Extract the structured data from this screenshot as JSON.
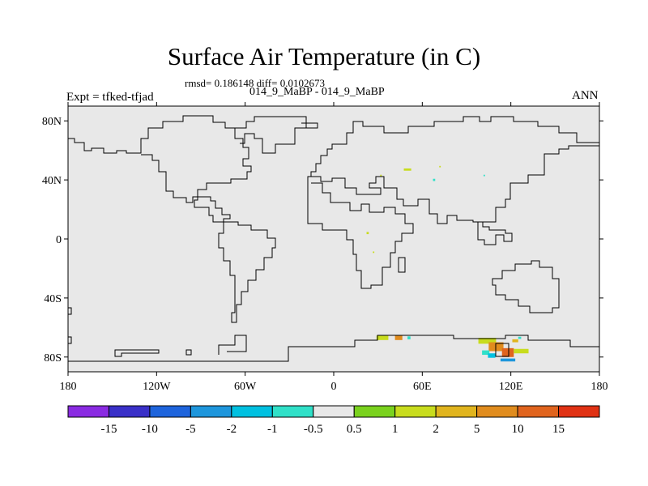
{
  "header": {
    "title": "Surface Air Temperature (in C)",
    "stats": "rmsd= 0.186148 diff= 0.0102673",
    "runs": "014_9_MaBP - 014_9_MaBP",
    "expt": "Expt = tfked-tfjad",
    "season": "ANN"
  },
  "map": {
    "projection": "cylindrical-equidistant",
    "lon_range": [
      -180,
      180
    ],
    "lat_range": [
      -90,
      90
    ],
    "background_color": "#e8e8e8",
    "x_ticks": [
      {
        "lon": -180,
        "label": "180"
      },
      {
        "lon": -120,
        "label": "120W"
      },
      {
        "lon": -60,
        "label": "60W"
      },
      {
        "lon": 0,
        "label": "0"
      },
      {
        "lon": 60,
        "label": "60E"
      },
      {
        "lon": 120,
        "label": "120E"
      },
      {
        "lon": 180,
        "label": "180"
      }
    ],
    "y_ticks": [
      {
        "lat": 80,
        "label": "80N"
      },
      {
        "lat": 40,
        "label": "40N"
      },
      {
        "lat": 0,
        "label": "0"
      },
      {
        "lat": -40,
        "label": "40S"
      },
      {
        "lat": -80,
        "label": "80S"
      }
    ],
    "anomaly_patches": [
      {
        "lon": 50,
        "lat": 47,
        "value": 1,
        "size": [
          5,
          1.5
        ]
      },
      {
        "lon": 72,
        "lat": 49,
        "value": 1,
        "size": [
          1,
          1
        ]
      },
      {
        "lon": 68,
        "lat": 40,
        "value": -1,
        "size": [
          1.5,
          1.5
        ]
      },
      {
        "lon": 32,
        "lat": 43,
        "value": 1,
        "size": [
          1,
          1
        ]
      },
      {
        "lon": 102,
        "lat": 43,
        "value": -1,
        "size": [
          1,
          1
        ]
      },
      {
        "lon": 23,
        "lat": 4,
        "value": 1,
        "size": [
          1.5,
          1.5
        ]
      },
      {
        "lon": 27,
        "lat": -9,
        "value": 1,
        "size": [
          1,
          1
        ]
      },
      {
        "lon": 33,
        "lat": -67,
        "value": 1,
        "size": [
          8,
          3
        ]
      },
      {
        "lon": 44,
        "lat": -67,
        "value": 5,
        "size": [
          5,
          3
        ]
      },
      {
        "lon": 51,
        "lat": -67,
        "value": -1,
        "size": [
          2,
          2
        ]
      },
      {
        "lon": 104,
        "lat": -69,
        "value": 1,
        "size": [
          12,
          4
        ]
      },
      {
        "lon": 110,
        "lat": -73,
        "value": 5,
        "size": [
          10,
          6
        ]
      },
      {
        "lon": 118,
        "lat": -77,
        "value": 10,
        "size": [
          8,
          6
        ]
      },
      {
        "lon": 103,
        "lat": -77,
        "value": -1,
        "size": [
          5,
          3
        ]
      },
      {
        "lon": 107,
        "lat": -79,
        "value": -2,
        "size": [
          5,
          3
        ]
      },
      {
        "lon": 127,
        "lat": -76,
        "value": 1,
        "size": [
          10,
          3
        ]
      },
      {
        "lon": 118,
        "lat": -82,
        "value": -5,
        "size": [
          10,
          2
        ]
      },
      {
        "lon": 123,
        "lat": -69,
        "value": 2,
        "size": [
          4,
          2
        ]
      },
      {
        "lon": 126,
        "lat": -67,
        "value": -1,
        "size": [
          2,
          1.5
        ]
      }
    ]
  },
  "colorbar": {
    "colors": [
      "#8a2be2",
      "#3a30c8",
      "#1e64dc",
      "#1e96dc",
      "#00c0e0",
      "#30e0c8",
      "#e8e8e8",
      "#7ad21e",
      "#c8dc1e",
      "#e0b41e",
      "#e08c1e",
      "#e0641e",
      "#e03214"
    ],
    "labels": [
      "-15",
      "-10",
      "-5",
      "-2",
      "-1",
      "-0.5",
      "0.5",
      "1",
      "2",
      "5",
      "10",
      "15"
    ],
    "bounds": [
      -15,
      -10,
      -5,
      -2,
      -1,
      -0.5,
      0.5,
      1,
      2,
      5,
      10,
      15
    ]
  }
}
